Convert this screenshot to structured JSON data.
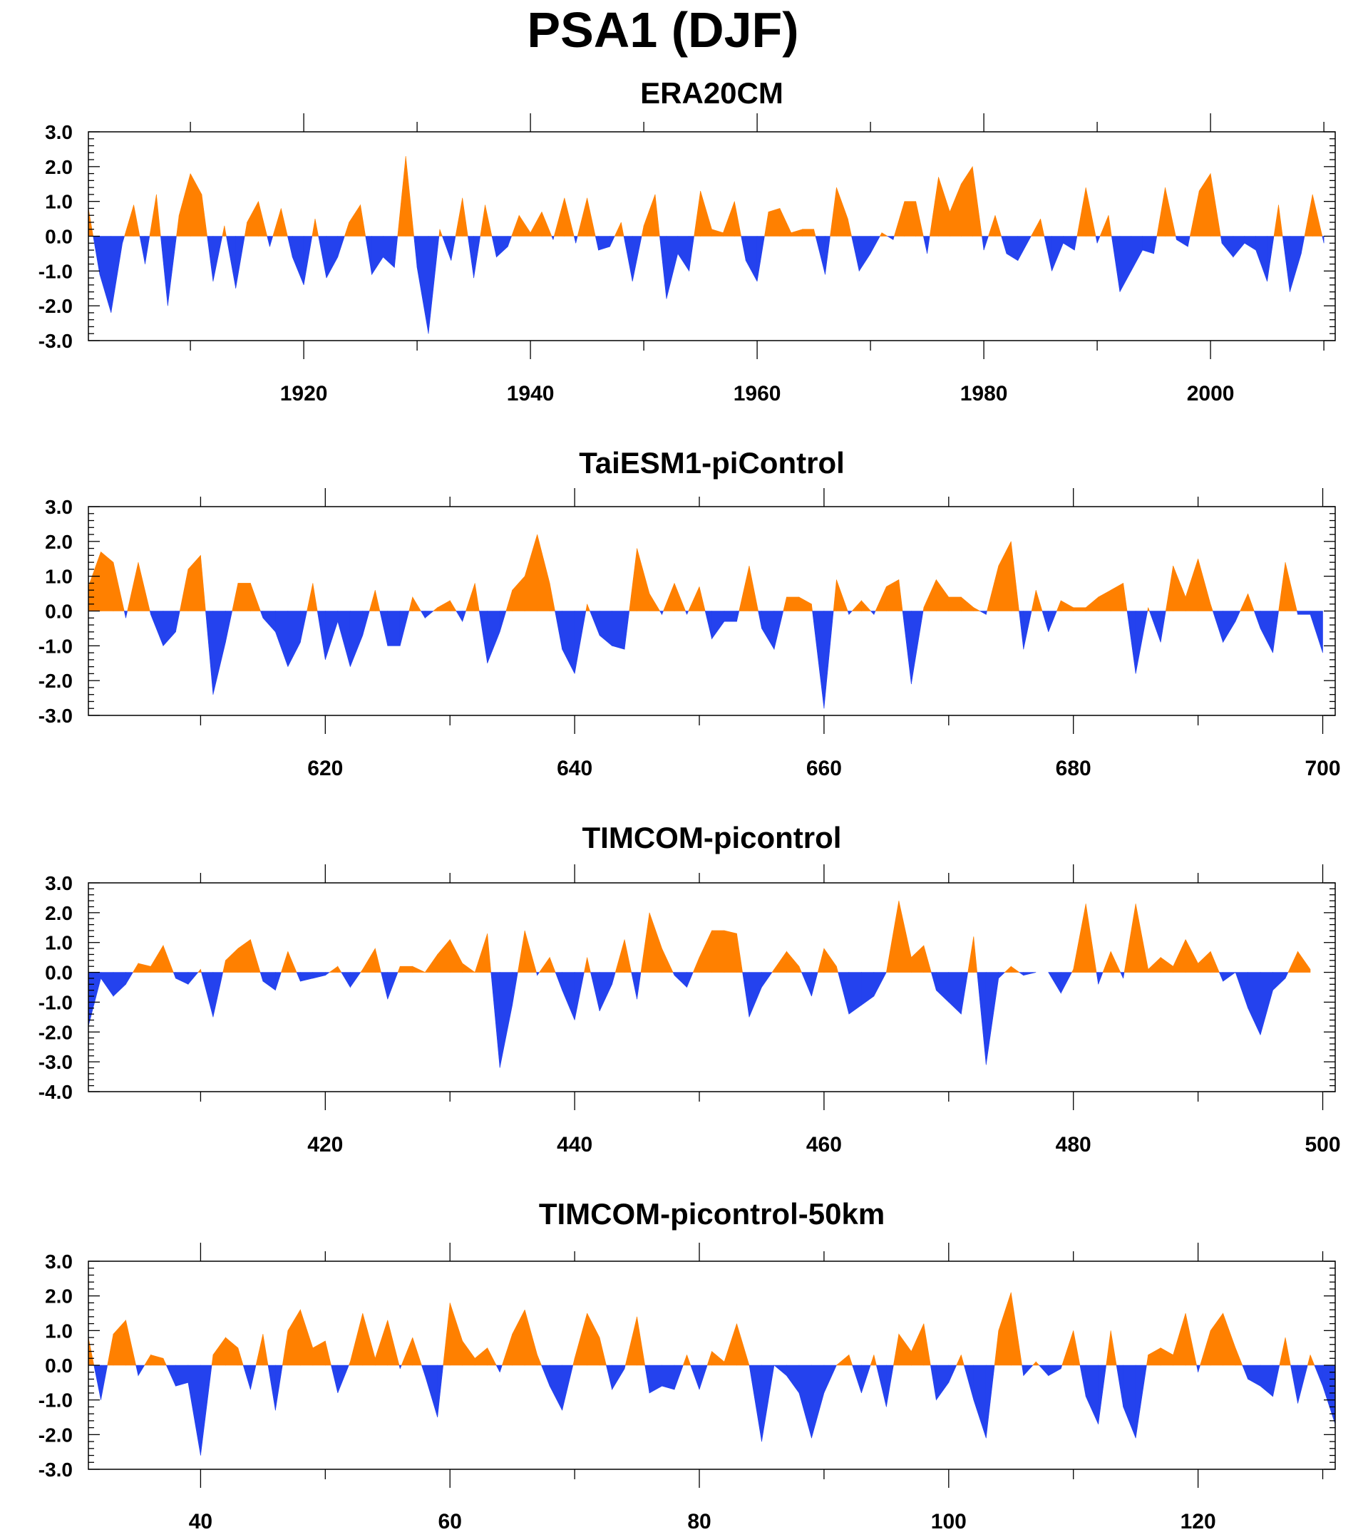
{
  "title": "PSA1 (DJF)",
  "colors": {
    "positive": "#ff8000",
    "negative": "#2442ee",
    "frame": "#000000"
  },
  "chart_data": [
    {
      "type": "area",
      "title": "ERA20CM",
      "xlim": [
        1901,
        2011
      ],
      "ylim": [
        -3.0,
        3.0
      ],
      "yticks": [
        "3.0",
        "2.0",
        "1.0",
        "0.0",
        "-1.0",
        "-2.0",
        "-3.0"
      ],
      "yticks_values": [
        3,
        2,
        1,
        0,
        -1,
        -2,
        -3
      ],
      "xticks": [
        1920,
        1940,
        1960,
        1980,
        2000
      ],
      "x_start": 1901,
      "values": [
        0.8,
        -1.1,
        -2.2,
        -0.2,
        0.9,
        -0.8,
        1.2,
        -2.0,
        0.6,
        1.8,
        1.2,
        -1.3,
        0.3,
        -1.5,
        0.4,
        1.0,
        -0.3,
        0.8,
        -0.6,
        -1.4,
        0.5,
        -1.2,
        -0.6,
        0.4,
        0.9,
        -1.1,
        -0.6,
        -0.9,
        2.3,
        -0.9,
        -2.8,
        0.2,
        -0.7,
        1.1,
        -1.2,
        0.9,
        -0.6,
        -0.3,
        0.6,
        0.1,
        0.7,
        -0.1,
        1.1,
        -0.2,
        1.1,
        -0.4,
        -0.3,
        0.4,
        -1.3,
        0.3,
        1.2,
        -1.8,
        -0.5,
        -1.0,
        1.3,
        0.2,
        0.1,
        1.0,
        -0.7,
        -1.3,
        0.7,
        0.8,
        0.1,
        0.2,
        0.2,
        -1.1,
        1.4,
        0.5,
        -1.0,
        -0.5,
        0.1,
        -0.1,
        1.0,
        1.0,
        -0.5,
        1.7,
        0.7,
        1.5,
        2.0,
        -0.4,
        0.6,
        -0.5,
        -0.7,
        -0.1,
        0.5,
        -1.0,
        -0.2,
        -0.4,
        1.4,
        -0.2,
        0.6,
        -1.6,
        -1.0,
        -0.4,
        -0.5,
        1.4,
        -0.1,
        -0.3,
        1.3,
        1.8,
        -0.2,
        -0.6,
        -0.2,
        -0.4,
        -1.3,
        0.9,
        -1.6,
        -0.5,
        1.2,
        -0.2
      ]
    },
    {
      "type": "area",
      "title": "TaiESM1-piControl",
      "xlim": [
        601,
        701
      ],
      "ylim": [
        -3.0,
        3.0
      ],
      "yticks": [
        "3.0",
        "2.0",
        "1.0",
        "0.0",
        "-1.0",
        "-2.0",
        "-3.0"
      ],
      "yticks_values": [
        3,
        2,
        1,
        0,
        -1,
        -2,
        -3
      ],
      "xticks": [
        620,
        640,
        660,
        680,
        700
      ],
      "x_start": 601,
      "values": [
        0.7,
        1.7,
        1.4,
        -0.2,
        1.4,
        -0.1,
        -1.0,
        -0.6,
        1.2,
        1.6,
        -2.4,
        -0.9,
        0.8,
        0.8,
        -0.2,
        -0.6,
        -1.6,
        -0.9,
        0.8,
        -1.4,
        -0.3,
        -1.6,
        -0.7,
        0.6,
        -1.0,
        -1.0,
        0.4,
        -0.2,
        0.1,
        0.3,
        -0.3,
        0.8,
        -1.5,
        -0.6,
        0.6,
        1.0,
        2.2,
        0.8,
        -1.1,
        -1.8,
        0.2,
        -0.7,
        -1.0,
        -1.1,
        1.8,
        0.5,
        -0.1,
        0.8,
        -0.1,
        0.7,
        -0.8,
        -0.3,
        -0.3,
        1.3,
        -0.5,
        -1.1,
        0.4,
        0.4,
        0.2,
        -2.8,
        0.9,
        -0.1,
        0.3,
        -0.1,
        0.7,
        0.9,
        -2.1,
        0.1,
        0.9,
        0.4,
        0.4,
        0.1,
        -0.1,
        1.3,
        2.0,
        -1.1,
        0.6,
        -0.6,
        0.3,
        0.1,
        0.1,
        0.4,
        0.6,
        0.8,
        -1.8,
        0.1,
        -0.9,
        1.3,
        0.4,
        1.5,
        0.2,
        -0.9,
        -0.3,
        0.5,
        -0.5,
        -1.2,
        1.4,
        -0.1,
        -0.1,
        -1.2
      ]
    },
    {
      "type": "area",
      "title": "TIMCOM-picontrol",
      "xlim": [
        401,
        501
      ],
      "ylim": [
        -4.0,
        3.0
      ],
      "yticks": [
        "3.0",
        "2.0",
        "1.0",
        "0.0",
        "-1.0",
        "-2.0",
        "-3.0",
        "-4.0"
      ],
      "yticks_values": [
        3,
        2,
        1,
        0,
        -1,
        -2,
        -3,
        -4
      ],
      "xticks": [
        420,
        440,
        460,
        480,
        500
      ],
      "x_start": 401,
      "values": [
        -1.8,
        -0.2,
        -0.8,
        -0.4,
        0.3,
        0.2,
        0.9,
        -0.2,
        -0.4,
        0.1,
        -1.5,
        0.4,
        0.8,
        1.1,
        -0.3,
        -0.6,
        0.7,
        -0.3,
        -0.2,
        -0.1,
        0.2,
        -0.5,
        0.1,
        0.8,
        -0.9,
        0.2,
        0.2,
        0.0,
        0.6,
        1.1,
        0.3,
        0.0,
        1.3,
        -3.2,
        -1.1,
        1.4,
        -0.1,
        0.5,
        -0.6,
        -1.6,
        0.5,
        -1.3,
        -0.4,
        1.1,
        -0.9,
        2.0,
        0.8,
        -0.1,
        -0.5,
        0.5,
        1.4,
        1.4,
        1.3,
        -1.5,
        -0.5,
        0.1,
        0.7,
        0.2,
        -0.8,
        0.8,
        0.2,
        -1.4,
        -1.1,
        -0.8,
        0.0,
        2.4,
        0.5,
        0.9,
        -0.6,
        -1.0,
        -1.4,
        1.2,
        -3.1,
        -0.2,
        0.2,
        -0.1,
        0.0,
        0.0,
        -0.7,
        0.1,
        2.3,
        -0.4,
        0.7,
        -0.2,
        2.3,
        0.1,
        0.5,
        0.2,
        1.1,
        0.3,
        0.7,
        -0.3,
        0.0,
        -1.2,
        -2.1,
        -0.6,
        -0.2,
        0.7,
        0.1
      ]
    },
    {
      "type": "area",
      "title": "TIMCOM-picontrol-50km",
      "xlim": [
        31,
        131
      ],
      "ylim": [
        -3.0,
        3.0
      ],
      "yticks": [
        "3.0",
        "2.0",
        "1.0",
        "0.0",
        "-1.0",
        "-2.0",
        "-3.0"
      ],
      "yticks_values": [
        3,
        2,
        1,
        0,
        -1,
        -2,
        -3
      ],
      "xticks": [
        40,
        60,
        80,
        100,
        120
      ],
      "x_start": 31,
      "values": [
        0.8,
        -1.0,
        0.9,
        1.3,
        -0.3,
        0.3,
        0.2,
        -0.6,
        -0.5,
        -2.6,
        0.3,
        0.8,
        0.5,
        -0.7,
        0.9,
        -1.3,
        1.0,
        1.6,
        0.5,
        0.7,
        -0.8,
        0.1,
        1.5,
        0.2,
        1.3,
        -0.1,
        0.8,
        -0.3,
        -1.5,
        1.8,
        0.7,
        0.2,
        0.5,
        -0.2,
        0.9,
        1.6,
        0.3,
        -0.6,
        -1.3,
        0.2,
        1.5,
        0.8,
        -0.7,
        -0.1,
        1.4,
        -0.8,
        -0.6,
        -0.7,
        0.3,
        -0.7,
        0.4,
        0.1,
        1.2,
        0.0,
        -2.2,
        0.0,
        -0.3,
        -0.8,
        -2.1,
        -0.8,
        0.0,
        0.3,
        -0.8,
        0.3,
        -1.2,
        0.9,
        0.4,
        1.2,
        -1.0,
        -0.5,
        0.3,
        -1.0,
        -2.1,
        1.0,
        2.1,
        -0.3,
        0.1,
        -0.3,
        -0.1,
        1.0,
        -0.9,
        -1.7,
        1.0,
        -1.2,
        -2.1,
        0.3,
        0.5,
        0.3,
        1.5,
        -0.2,
        1.0,
        1.5,
        0.5,
        -0.4,
        -0.6,
        -0.9,
        0.8,
        -1.1,
        0.3,
        -0.6,
        -1.7
      ]
    }
  ]
}
